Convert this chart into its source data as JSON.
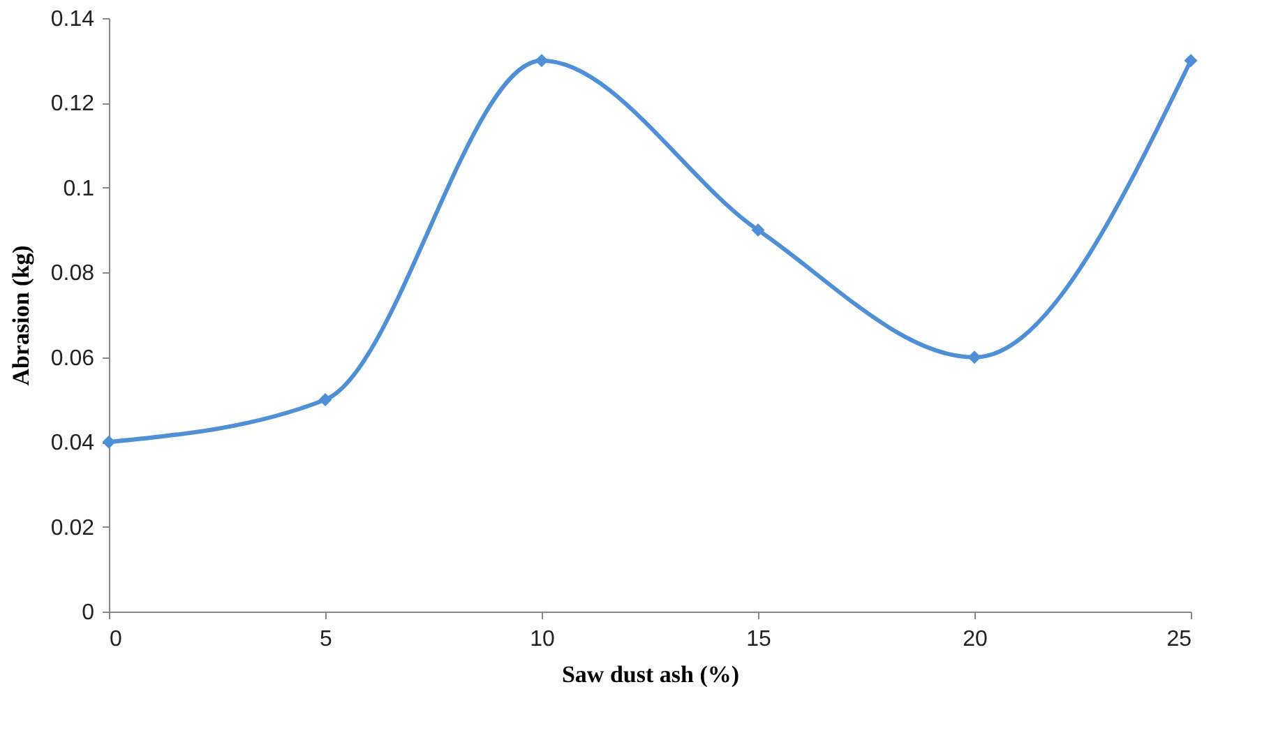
{
  "chart_data": {
    "type": "line",
    "xlabel": "Saw dust  ash (%)",
    "ylabel": "Abrasion (kg)",
    "x": [
      0,
      5,
      10,
      15,
      20,
      25
    ],
    "series": [
      {
        "color": "#4f8fd6",
        "values": [
          0.04,
          0.05,
          0.13,
          0.09,
          0.06,
          0.13
        ]
      }
    ],
    "xlim": [
      0,
      25
    ],
    "xticks": [
      0,
      5,
      10,
      15,
      20,
      25
    ],
    "ylim": [
      0,
      0.14
    ],
    "yticks": [
      0,
      0.02,
      0.04,
      0.06,
      0.08,
      0.1,
      0.12,
      0.14
    ],
    "grid": false,
    "marker": "diamond",
    "line_style": "solid"
  }
}
